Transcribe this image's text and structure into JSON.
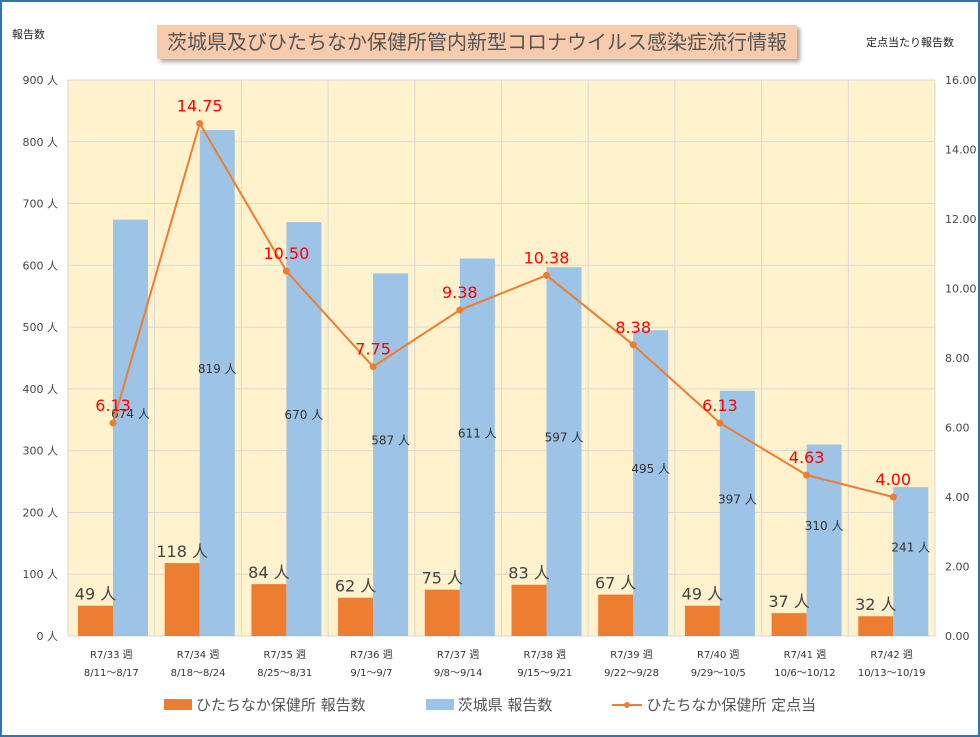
{
  "chart_data": {
    "type": "bar",
    "title": "茨城県及びひたちなか保健所管内新型コロナウイルス感染症流行情報",
    "ylabel_left": "報告数",
    "ylabel_right": "定点当たり報告数",
    "ylim_left": [
      0,
      900
    ],
    "ylim_right": [
      0,
      16
    ],
    "left_ticks": [
      "0 人",
      "100 人",
      "200 人",
      "300 人",
      "400 人",
      "500 人",
      "600 人",
      "700 人",
      "800 人",
      "900 人"
    ],
    "right_ticks": [
      "0.00",
      "2.00",
      "4.00",
      "6.00",
      "8.00",
      "10.00",
      "12.00",
      "14.00",
      "16.00"
    ],
    "grid": true,
    "legend_position": "bottom",
    "categories": [
      [
        "R7/33 週",
        "8/11～8/17"
      ],
      [
        "R7/34 週",
        "8/18～8/24"
      ],
      [
        "R7/35 週",
        "8/25～8/31"
      ],
      [
        "R7/36 週",
        "9/1～9/7"
      ],
      [
        "R7/37 週",
        "9/8～9/14"
      ],
      [
        "R7/38 週",
        "9/15～9/21"
      ],
      [
        "R7/39 週",
        "9/22～9/28"
      ],
      [
        "R7/40 週",
        "9/29～10/5"
      ],
      [
        "R7/41 週",
        "10/6～10/12"
      ],
      [
        "R7/42 週",
        "10/13～10/19"
      ]
    ],
    "series": [
      {
        "name": "ひたちなか保健所 報告数",
        "type": "bar",
        "axis": "left",
        "color": "#ED7D31",
        "values": [
          49,
          118,
          84,
          62,
          75,
          83,
          67,
          49,
          37,
          32
        ],
        "labels": [
          "49 人",
          "118 人",
          "84 人",
          "62 人",
          "75 人",
          "83 人",
          "67 人",
          "49 人",
          "37 人",
          "32 人"
        ]
      },
      {
        "name": "茨城県 報告数",
        "type": "bar",
        "axis": "left",
        "color": "#9DC3E6",
        "values": [
          674,
          819,
          670,
          587,
          611,
          597,
          495,
          397,
          310,
          241
        ],
        "labels": [
          "674 人",
          "819 人",
          "670 人",
          "587 人",
          "611 人",
          "597 人",
          "495 人",
          "397 人",
          "310 人",
          "241 人"
        ]
      },
      {
        "name": "ひたちなか保健所 定点当",
        "type": "line",
        "axis": "right",
        "color": "#ED7D31",
        "values": [
          6.13,
          14.75,
          10.5,
          7.75,
          9.38,
          10.38,
          8.38,
          6.13,
          4.63,
          4.0
        ],
        "labels": [
          "6.13",
          "14.75",
          "10.50",
          "7.75",
          "9.38",
          "10.38",
          "8.38",
          "6.13",
          "4.63",
          "4.00"
        ]
      }
    ],
    "colors": {
      "plot_bg": "#FFF2CC",
      "label_red": "#FF0000",
      "frame": "#2E75B6",
      "title_bg": "#F8CBAD"
    }
  }
}
